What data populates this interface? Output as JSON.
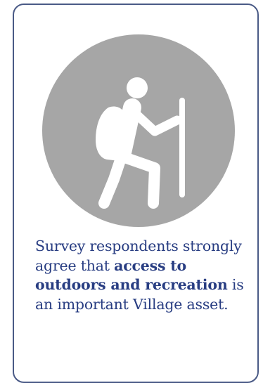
{
  "icon": {
    "name": "hiker-icon",
    "circle_color": "#a6a6a6",
    "figure_color": "#ffffff"
  },
  "caption": {
    "intro": "Survey respondents strongly agree that ",
    "emphasis": "access to outdoors and recreation",
    "outro": " is an important Village asset.",
    "text_color": "#283d82"
  },
  "card": {
    "border_color": "#4a5a86"
  }
}
